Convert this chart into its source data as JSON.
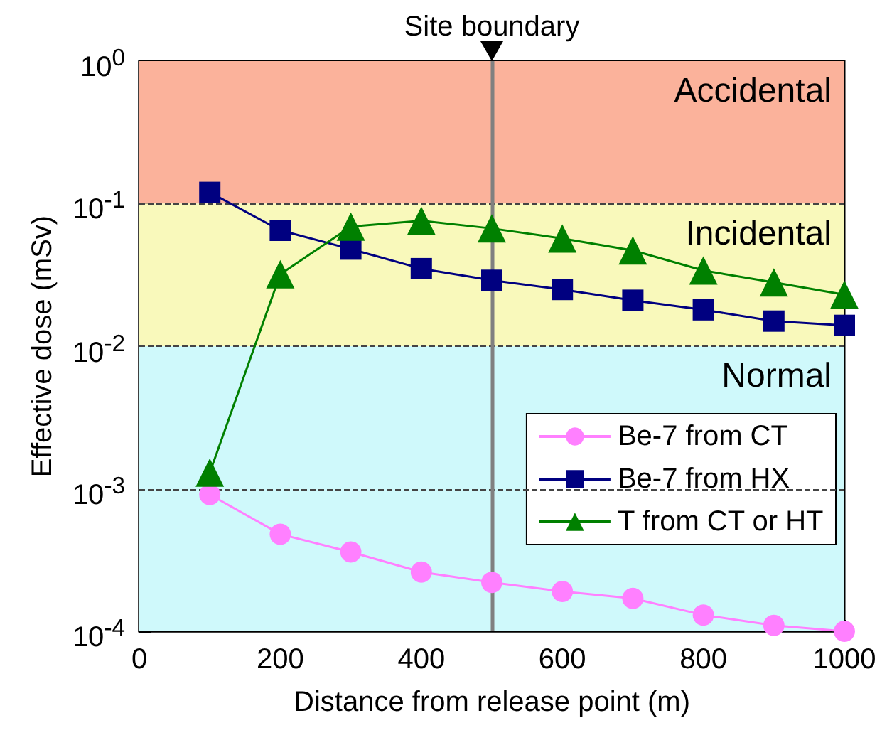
{
  "chart_data": {
    "type": "line",
    "xlabel": "Distance from release point (m)",
    "ylabel": "Effective dose (mSv)",
    "x": [
      100,
      200,
      300,
      400,
      500,
      600,
      700,
      800,
      900,
      1000
    ],
    "series": [
      {
        "name": "Be-7 from CT",
        "color": "#ff80ff",
        "marker": "circle",
        "values": [
          0.00091,
          0.00048,
          0.00036,
          0.00026,
          0.00022,
          0.00019,
          0.00017,
          0.00013,
          0.00011,
          0.0001
        ]
      },
      {
        "name": "Be-7 from HX",
        "color": "#000080",
        "marker": "square",
        "values": [
          0.12,
          0.065,
          0.048,
          0.035,
          0.029,
          0.025,
          0.021,
          0.018,
          0.015,
          0.014
        ]
      },
      {
        "name": "T from CT or HT",
        "color": "#008000",
        "marker": "triangle",
        "values": [
          0.0013,
          0.032,
          0.069,
          0.076,
          0.067,
          0.057,
          0.047,
          0.034,
          0.028,
          0.023
        ]
      }
    ],
    "log": "y",
    "xlim": [
      0,
      1000
    ],
    "xticks": [
      0,
      200,
      400,
      600,
      800,
      1000
    ],
    "ylim": [
      0.0001,
      1
    ],
    "yticks": [
      {
        "value": 0.0001,
        "label": "10$^{-4}$"
      },
      {
        "value": 0.001,
        "label": "10$^{-3}$"
      },
      {
        "value": 0.01,
        "label": "10$^{-2}$"
      },
      {
        "value": 0.1,
        "label": "10$^{-1}$"
      },
      {
        "value": 1,
        "label": "10$^{0}$"
      }
    ],
    "bands": [
      {
        "axis": "y",
        "from": 0.1,
        "to": 1,
        "label": "Accidental",
        "color": "#fbb29b"
      },
      {
        "axis": "y",
        "from": 0.01,
        "to": 0.1,
        "label": "Incidental",
        "color": "#f9f9bb"
      },
      {
        "axis": "y",
        "from": 0.0001,
        "to": 0.01,
        "label": "Normal",
        "color": "#cff9fb"
      }
    ],
    "ref_lines": [
      {
        "axis": "y",
        "value": 0.1,
        "line_style": "dashed",
        "color": "#444444"
      },
      {
        "axis": "y",
        "value": 0.01,
        "line_style": "dashed",
        "color": "#444444"
      },
      {
        "axis": "y",
        "value": 0.001,
        "line_style": "dashed",
        "color": "#444444"
      },
      {
        "axis": "x",
        "value": 500,
        "label": "Site boundary",
        "line_style": "solid",
        "color": "#808080"
      }
    ],
    "legend": "right",
    "grid": false
  }
}
